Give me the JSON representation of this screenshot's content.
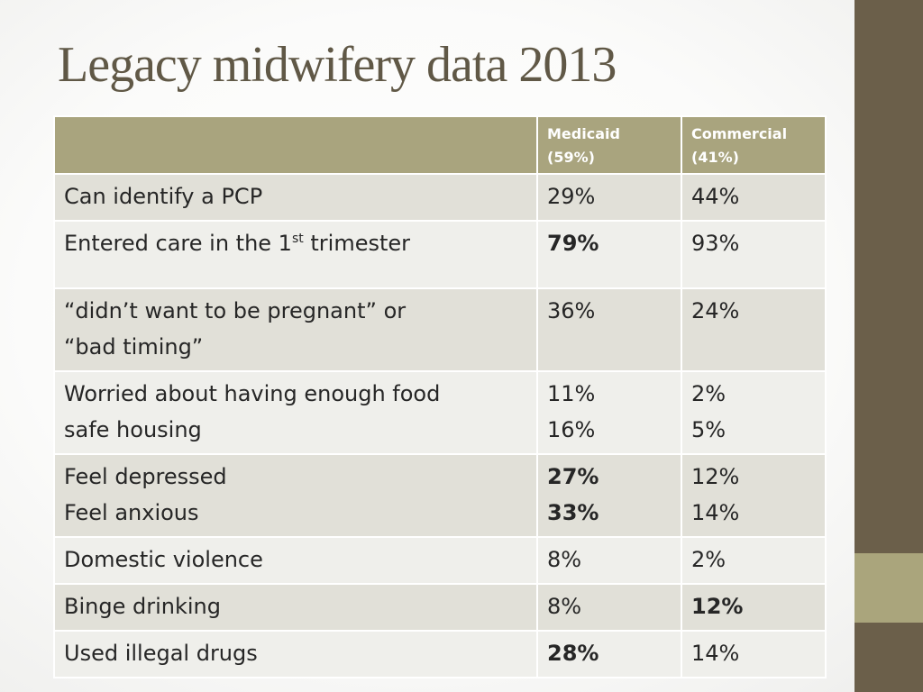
{
  "slide": {
    "title": "Legacy midwifery data 2013",
    "colors": {
      "background": "#fbfbfa",
      "title": "#605846",
      "side_bar": "#6b5f4a",
      "side_accent": "#aaa57c",
      "header_fill": "#a9a47e",
      "row_odd": "#e1e0d8",
      "row_even": "#efefeb",
      "text": "#262626"
    }
  },
  "table": {
    "headers": {
      "medicaid": [
        "Medicaid",
        "(59%)"
      ],
      "commercial": [
        "Commercial",
        "(41%)"
      ]
    },
    "rows": [
      {
        "label": [
          "Can identify a PCP"
        ],
        "medicaid": [
          {
            "text": "29%",
            "bold": false
          }
        ],
        "commercial": [
          {
            "text": "44%",
            "bold": false
          }
        ]
      },
      {
        "label_parts": {
          "before": "Entered care in the 1",
          "sup": "st",
          "after": " trimester"
        },
        "medicaid": [
          {
            "text": "79%",
            "bold": true
          }
        ],
        "commercial": [
          {
            "text": "93%",
            "bold": false
          }
        ]
      },
      {
        "label": [
          "“didn’t want to be pregnant” or",
          "“bad timing”"
        ],
        "medicaid": [
          {
            "text": "36%",
            "bold": false
          }
        ],
        "commercial": [
          {
            "text": "24%",
            "bold": false
          }
        ]
      },
      {
        "label": [
          "Worried about having enough food",
          "safe housing"
        ],
        "medicaid": [
          {
            "text": "11%",
            "bold": false
          },
          {
            "text": "16%",
            "bold": false
          }
        ],
        "commercial": [
          {
            "text": "2%",
            "bold": false
          },
          {
            "text": "5%",
            "bold": false
          }
        ]
      },
      {
        "label": [
          "Feel depressed",
          "Feel anxious"
        ],
        "medicaid": [
          {
            "text": "27%",
            "bold": true
          },
          {
            "text": "33%",
            "bold": true
          }
        ],
        "commercial": [
          {
            "text": "12%",
            "bold": false
          },
          {
            "text": "14%",
            "bold": false
          }
        ]
      },
      {
        "label": [
          "Domestic violence"
        ],
        "medicaid": [
          {
            "text": "8%",
            "bold": false
          }
        ],
        "commercial": [
          {
            "text": "2%",
            "bold": false
          }
        ]
      },
      {
        "label": [
          "Binge drinking"
        ],
        "medicaid": [
          {
            "text": "8%",
            "bold": false
          }
        ],
        "commercial": [
          {
            "text": "12%",
            "bold": true
          }
        ]
      },
      {
        "label": [
          "Used illegal drugs"
        ],
        "medicaid": [
          {
            "text": "28%",
            "bold": true
          }
        ],
        "commercial": [
          {
            "text": "14%",
            "bold": false
          }
        ]
      }
    ]
  }
}
